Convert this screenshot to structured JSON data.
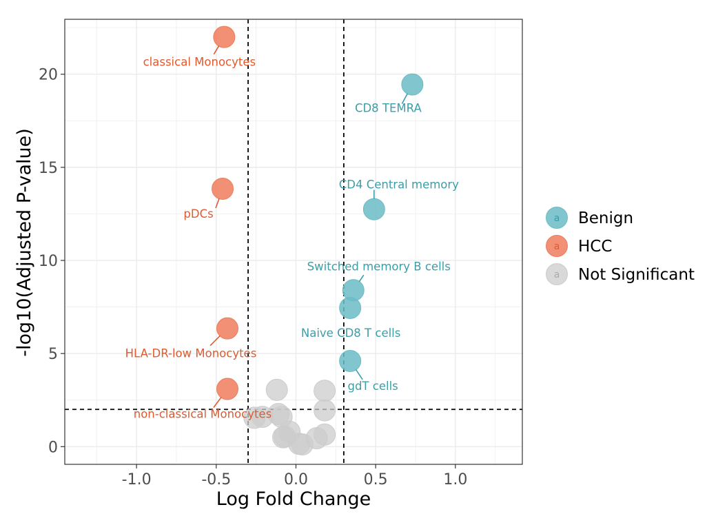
{
  "chart_data": {
    "type": "scatter",
    "title": "",
    "xlabel": "Log Fold Change",
    "ylabel": "-log10(Adjusted P-value)",
    "xlim": [
      -1.45,
      1.42
    ],
    "ylim": [
      -0.95,
      22.95
    ],
    "x_ticks": [
      -1.0,
      -0.5,
      0.0,
      0.5,
      1.0
    ],
    "x_tick_labels": [
      "-1.0",
      "-0.5",
      "0.0",
      "0.5",
      "1.0"
    ],
    "y_ticks": [
      0,
      5,
      10,
      15,
      20
    ],
    "y_tick_labels": [
      "0",
      "5",
      "10",
      "15",
      "20"
    ],
    "grid": true,
    "thresholds": {
      "x": [
        -0.3,
        0.3
      ],
      "y": 2
    },
    "colors": {
      "Benign": "#6bbcc6",
      "HCC": "#ee7d5c",
      "Not Significant": "#cccccc"
    },
    "label_colors": {
      "Benign": "#3a9ea9",
      "HCC": "#e05a2f"
    },
    "legend": {
      "position": "right",
      "key_glyph": "a",
      "entries": [
        "Benign",
        "HCC",
        "Not Significant"
      ]
    },
    "series": [
      {
        "name": "Benign",
        "points": [
          {
            "x": 0.73,
            "y": 19.45,
            "label": "CD8 TEMRA"
          },
          {
            "x": 0.49,
            "y": 12.75,
            "label": "CD4 Central memory"
          },
          {
            "x": 0.36,
            "y": 8.4,
            "label": "Switched memory B cells"
          },
          {
            "x": 0.34,
            "y": 7.45,
            "label": "Naive CD8 T cells"
          },
          {
            "x": 0.34,
            "y": 4.6,
            "label": "gdT cells"
          }
        ]
      },
      {
        "name": "HCC",
        "points": [
          {
            "x": -0.45,
            "y": 22.0,
            "label": "classical Monocytes"
          },
          {
            "x": -0.46,
            "y": 13.85,
            "label": "pDCs"
          },
          {
            "x": -0.43,
            "y": 6.35,
            "label": "HLA-DR-low Monocytes"
          },
          {
            "x": -0.43,
            "y": 3.1,
            "label": "non-classical Monocytes"
          }
        ]
      },
      {
        "name": "Not Significant",
        "points": [
          {
            "x": -0.12,
            "y": 3.05
          },
          {
            "x": 0.18,
            "y": 3.0
          },
          {
            "x": 0.18,
            "y": 1.95
          },
          {
            "x": -0.11,
            "y": 1.75
          },
          {
            "x": -0.09,
            "y": 1.6
          },
          {
            "x": -0.21,
            "y": 1.6
          },
          {
            "x": -0.26,
            "y": 1.55
          },
          {
            "x": -0.04,
            "y": 0.8
          },
          {
            "x": -0.07,
            "y": 0.55
          },
          {
            "x": -0.08,
            "y": 0.5
          },
          {
            "x": 0.18,
            "y": 0.65
          },
          {
            "x": 0.13,
            "y": 0.45
          },
          {
            "x": 0.02,
            "y": 0.15
          },
          {
            "x": 0.04,
            "y": 0.12
          }
        ]
      }
    ]
  }
}
